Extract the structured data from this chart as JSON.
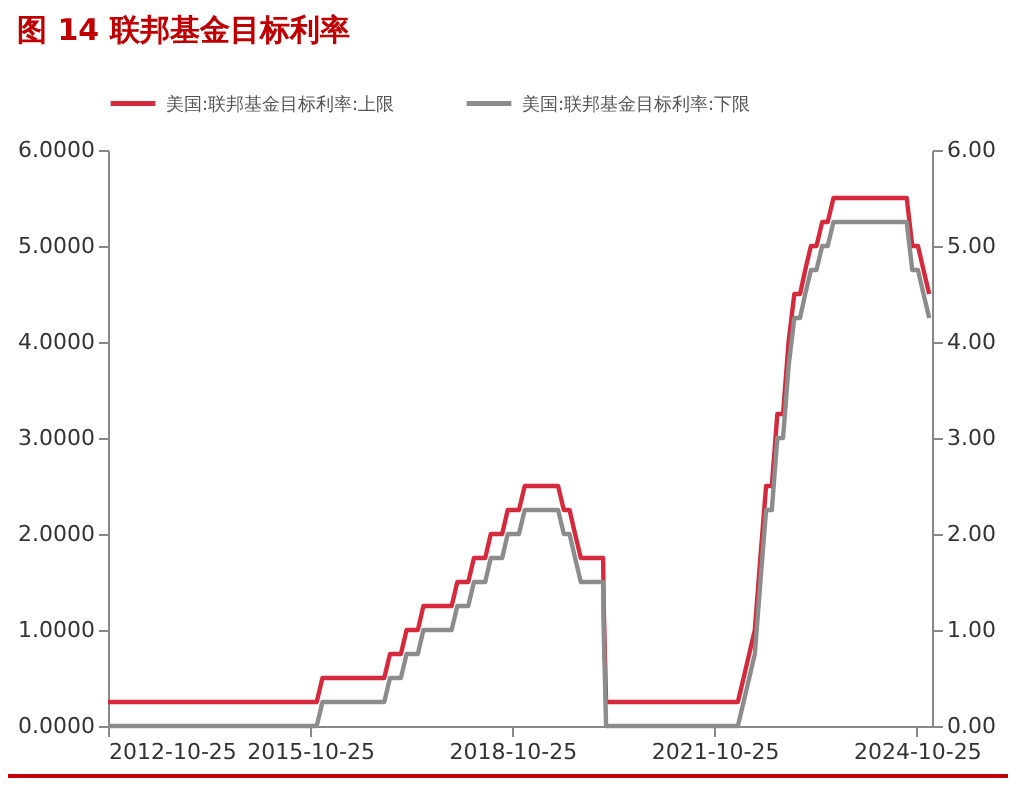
{
  "chart_data": {
    "type": "line",
    "title": "图 14  联邦基金目标利率",
    "x": [
      "2012-10-25",
      "2015-11-30",
      "2015-12-31",
      "2016-11-30",
      "2016-12-31",
      "2017-02-28",
      "2017-03-31",
      "2017-05-31",
      "2017-06-30",
      "2017-11-30",
      "2017-12-31",
      "2018-02-28",
      "2018-03-31",
      "2018-05-31",
      "2018-06-30",
      "2018-08-31",
      "2018-09-30",
      "2018-11-30",
      "2018-12-31",
      "2019-06-30",
      "2019-07-31",
      "2019-08-31",
      "2019-09-30",
      "2019-10-31",
      "2020-02-29",
      "2020-03-03",
      "2020-03-16",
      "2022-02-28",
      "2022-03-31",
      "2022-05-31",
      "2022-06-30",
      "2022-07-31",
      "2022-08-31",
      "2022-09-30",
      "2022-10-31",
      "2022-11-30",
      "2022-12-31",
      "2023-01-31",
      "2023-02-28",
      "2023-03-31",
      "2023-04-30",
      "2023-05-31",
      "2023-06-30",
      "2023-07-31",
      "2024-08-31",
      "2024-09-30",
      "2024-10-31",
      "2024-11-30",
      "2024-12-31"
    ],
    "series": [
      {
        "name": "美国:联邦基金目标利率:上限",
        "color": "#d42a3c",
        "values": [
          0.25,
          0.25,
          0.5,
          0.5,
          0.75,
          0.75,
          1,
          1,
          1.25,
          1.25,
          1.5,
          1.5,
          1.75,
          1.75,
          2,
          2,
          2.25,
          2.25,
          2.5,
          2.5,
          2.25,
          2.25,
          2,
          1.75,
          1.75,
          1.25,
          0.25,
          0.25,
          0.5,
          1,
          1.75,
          2.5,
          2.5,
          3.25,
          3.25,
          4,
          4.5,
          4.5,
          4.75,
          5,
          5,
          5.25,
          5.25,
          5.5,
          5.5,
          5,
          5,
          4.75,
          4.5
        ]
      },
      {
        "name": "美国:联邦基金目标利率:下限",
        "color": "#8c8c8c",
        "axis": "y2",
        "values": [
          0,
          0,
          0.25,
          0.25,
          0.5,
          0.5,
          0.75,
          0.75,
          1,
          1,
          1.25,
          1.25,
          1.5,
          1.5,
          1.75,
          1.75,
          2,
          2,
          2.25,
          2.25,
          2,
          2,
          1.75,
          1.5,
          1.5,
          1,
          0,
          0,
          0.25,
          0.75,
          1.5,
          2.25,
          2.25,
          3,
          3,
          3.75,
          4.25,
          4.25,
          4.5,
          4.75,
          4.75,
          5,
          5,
          5.25,
          5.25,
          4.75,
          4.75,
          4.5,
          4.25
        ]
      }
    ],
    "xlim": [
      "2012-10-25",
      "2025-01-15"
    ],
    "xticks": [
      "2012-10-25",
      "2015-10-25",
      "2018-10-25",
      "2021-10-25",
      "2024-10-25"
    ],
    "ylim": [
      0,
      6
    ],
    "yticks": [
      {
        "value": 0,
        "label": "0.0000"
      },
      {
        "value": 1,
        "label": "1.0000"
      },
      {
        "value": 2,
        "label": "2.0000"
      },
      {
        "value": 3,
        "label": "3.0000"
      },
      {
        "value": 4,
        "label": "4.0000"
      },
      {
        "value": 5,
        "label": "5.0000"
      },
      {
        "value": 6,
        "label": "6.0000"
      }
    ],
    "y2lim": [
      0,
      6
    ],
    "y2ticks": [
      {
        "value": 0,
        "label": "0.00"
      },
      {
        "value": 1,
        "label": "1.00"
      },
      {
        "value": 2,
        "label": "2.00"
      },
      {
        "value": 3,
        "label": "3.00"
      },
      {
        "value": 4,
        "label": "4.00"
      },
      {
        "value": 5,
        "label": "5.00"
      },
      {
        "value": 6,
        "label": "6.00"
      }
    ],
    "grid": false,
    "legend": "top"
  }
}
